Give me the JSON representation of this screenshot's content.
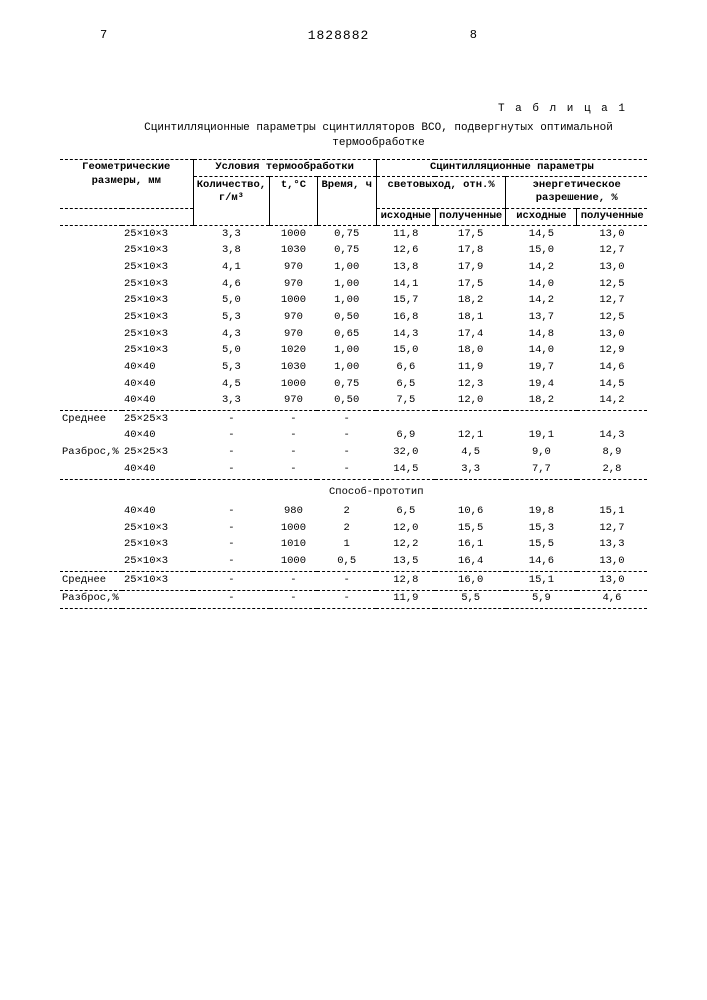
{
  "header": {
    "page_left": "7",
    "doc_number": "1828882",
    "page_right": "8"
  },
  "table_label": "Т а б л и ц а 1",
  "caption": "Сцинтилляционные параметры сцинтилляторов ВСО, подвергнутых оптимальной термообработке",
  "columns": {
    "geom": "Геометрические размеры, мм",
    "cond": "Условия термообработки",
    "scint": "Сцинтилляционные параметры",
    "qty": "Количество, г/м³",
    "temp": "t,°С",
    "time": "Время, ч",
    "light": "световыход, отн.%",
    "energy": "энергетическое разрешение, %",
    "src": "исходные",
    "got": "полученные"
  },
  "rows1": [
    {
      "g": "25×10×3",
      "q": "3,3",
      "t": "1000",
      "tm": "0,75",
      "l1": "11,8",
      "l2": "17,5",
      "e1": "14,5",
      "e2": "13,0"
    },
    {
      "g": "25×10×3",
      "q": "3,8",
      "t": "1030",
      "tm": "0,75",
      "l1": "12,6",
      "l2": "17,8",
      "e1": "15,0",
      "e2": "12,7"
    },
    {
      "g": "25×10×3",
      "q": "4,1",
      "t": "970",
      "tm": "1,00",
      "l1": "13,8",
      "l2": "17,9",
      "e1": "14,2",
      "e2": "13,0"
    },
    {
      "g": "25×10×3",
      "q": "4,6",
      "t": "970",
      "tm": "1,00",
      "l1": "14,1",
      "l2": "17,5",
      "e1": "14,0",
      "e2": "12,5"
    },
    {
      "g": "25×10×3",
      "q": "5,0",
      "t": "1000",
      "tm": "1,00",
      "l1": "15,7",
      "l2": "18,2",
      "e1": "14,2",
      "e2": "12,7"
    },
    {
      "g": "25×10×3",
      "q": "5,3",
      "t": "970",
      "tm": "0,50",
      "l1": "16,8",
      "l2": "18,1",
      "e1": "13,7",
      "e2": "12,5"
    },
    {
      "g": "25×10×3",
      "q": "4,3",
      "t": "970",
      "tm": "0,65",
      "l1": "14,3",
      "l2": "17,4",
      "e1": "14,8",
      "e2": "13,0"
    },
    {
      "g": "25×10×3",
      "q": "5,0",
      "t": "1020",
      "tm": "1,00",
      "l1": "15,0",
      "l2": "18,0",
      "e1": "14,0",
      "e2": "12,9"
    },
    {
      "g": "40×40",
      "q": "5,3",
      "t": "1030",
      "tm": "1,00",
      "l1": "6,6",
      "l2": "11,9",
      "e1": "19,7",
      "e2": "14,6"
    },
    {
      "g": "40×40",
      "q": "4,5",
      "t": "1000",
      "tm": "0,75",
      "l1": "6,5",
      "l2": "12,3",
      "e1": "19,4",
      "e2": "14,5"
    },
    {
      "g": "40×40",
      "q": "3,3",
      "t": "970",
      "tm": "0,50",
      "l1": "7,5",
      "l2": "12,0",
      "e1": "18,2",
      "e2": "14,2"
    }
  ],
  "avg_label": "Среднее",
  "spread_label": "Разброс,%",
  "avg1": [
    {
      "g": "25×25×3",
      "q": "-",
      "t": "-",
      "tm": "-",
      "l1": "",
      "l2": "",
      "e1": "",
      "e2": ""
    },
    {
      "g": "40×40",
      "q": "-",
      "t": "-",
      "tm": "-",
      "l1": "6,9",
      "l2": "12,1",
      "e1": "19,1",
      "e2": "14,3"
    }
  ],
  "spread1": [
    {
      "g": "25×25×3",
      "q": "-",
      "t": "-",
      "tm": "-",
      "l1": "32,0",
      "l2": "4,5",
      "e1": "9,0",
      "e2": "8,9"
    },
    {
      "g": "40×40",
      "q": "-",
      "t": "-",
      "tm": "-",
      "l1": "14,5",
      "l2": "3,3",
      "e1": "7,7",
      "e2": "2,8"
    }
  ],
  "proto_label": "Способ-прототип",
  "rows2": [
    {
      "g": "40×40",
      "q": "-",
      "t": "980",
      "tm": "2",
      "l1": "6,5",
      "l2": "10,6",
      "e1": "19,8",
      "e2": "15,1"
    },
    {
      "g": "25×10×3",
      "q": "-",
      "t": "1000",
      "tm": "2",
      "l1": "12,0",
      "l2": "15,5",
      "e1": "15,3",
      "e2": "12,7"
    },
    {
      "g": "25×10×3",
      "q": "-",
      "t": "1010",
      "tm": "1",
      "l1": "12,2",
      "l2": "16,1",
      "e1": "15,5",
      "e2": "13,3"
    },
    {
      "g": "25×10×3",
      "q": "-",
      "t": "1000",
      "tm": "0,5",
      "l1": "13,5",
      "l2": "16,4",
      "e1": "14,6",
      "e2": "13,0"
    }
  ],
  "avg2": {
    "g": "25×10×3",
    "q": "-",
    "t": "-",
    "tm": "-",
    "l1": "12,8",
    "l2": "16,0",
    "e1": "15,1",
    "e2": "13,0"
  },
  "spread2": {
    "g": "",
    "q": "-",
    "t": "-",
    "tm": "-",
    "l1": "11,9",
    "l2": "5,5",
    "e1": "5,9",
    "e2": "4,6"
  }
}
